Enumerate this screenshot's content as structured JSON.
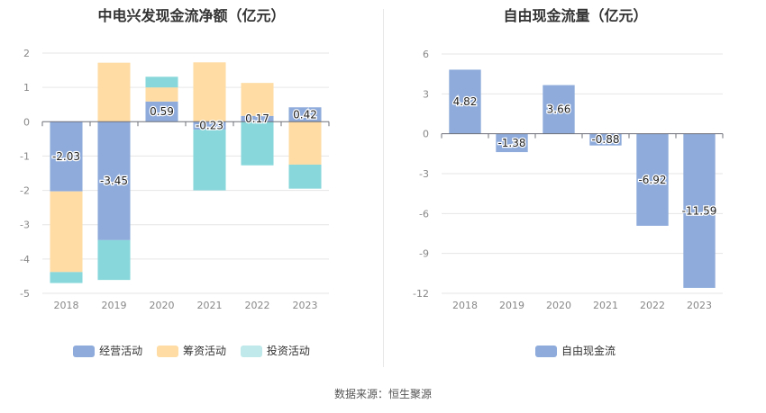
{
  "source_text": "数据来源：恒生聚源",
  "chart_data": [
    {
      "type": "bar",
      "stacked": true,
      "title": "中电兴发现金流净额（亿元）",
      "categories": [
        "2018",
        "2019",
        "2020",
        "2021",
        "2022",
        "2023"
      ],
      "ylim": [
        -5,
        2
      ],
      "yticks": [
        2,
        1,
        0,
        -1,
        -2,
        -3,
        -4,
        -5
      ],
      "grid": true,
      "legend_position": "bottom",
      "series": [
        {
          "name": "经营活动",
          "color": "#8eabdb",
          "values": [
            -2.03,
            -3.45,
            0.59,
            -0.23,
            0.17,
            0.42
          ],
          "labels": [
            "-2.03",
            "-3.45",
            "0.59",
            "-0.23",
            "0.17",
            "0.42"
          ]
        },
        {
          "name": "筹资活动",
          "color": "#fedca4",
          "values": [
            -2.35,
            1.72,
            0.41,
            1.73,
            0.96,
            -1.25
          ]
        },
        {
          "name": "投资活动",
          "color": "#88d7db",
          "values": [
            -0.32,
            -1.16,
            0.31,
            -1.77,
            -1.27,
            -0.7
          ]
        }
      ]
    },
    {
      "type": "bar",
      "title": "自由现金流量（亿元）",
      "categories": [
        "2018",
        "2019",
        "2020",
        "2021",
        "2022",
        "2023"
      ],
      "ylim": [
        -12,
        6
      ],
      "yticks": [
        6,
        3,
        0,
        -3,
        -6,
        -9,
        -12
      ],
      "grid": true,
      "legend_position": "bottom",
      "series": [
        {
          "name": "自由现金流",
          "color": "#8eabdb",
          "values": [
            4.82,
            -1.38,
            3.66,
            -0.88,
            -6.92,
            -11.59
          ],
          "labels": [
            "4.82",
            "-1.38",
            "3.66",
            "-0.88",
            "-6.92",
            "-11.59"
          ]
        }
      ]
    }
  ]
}
